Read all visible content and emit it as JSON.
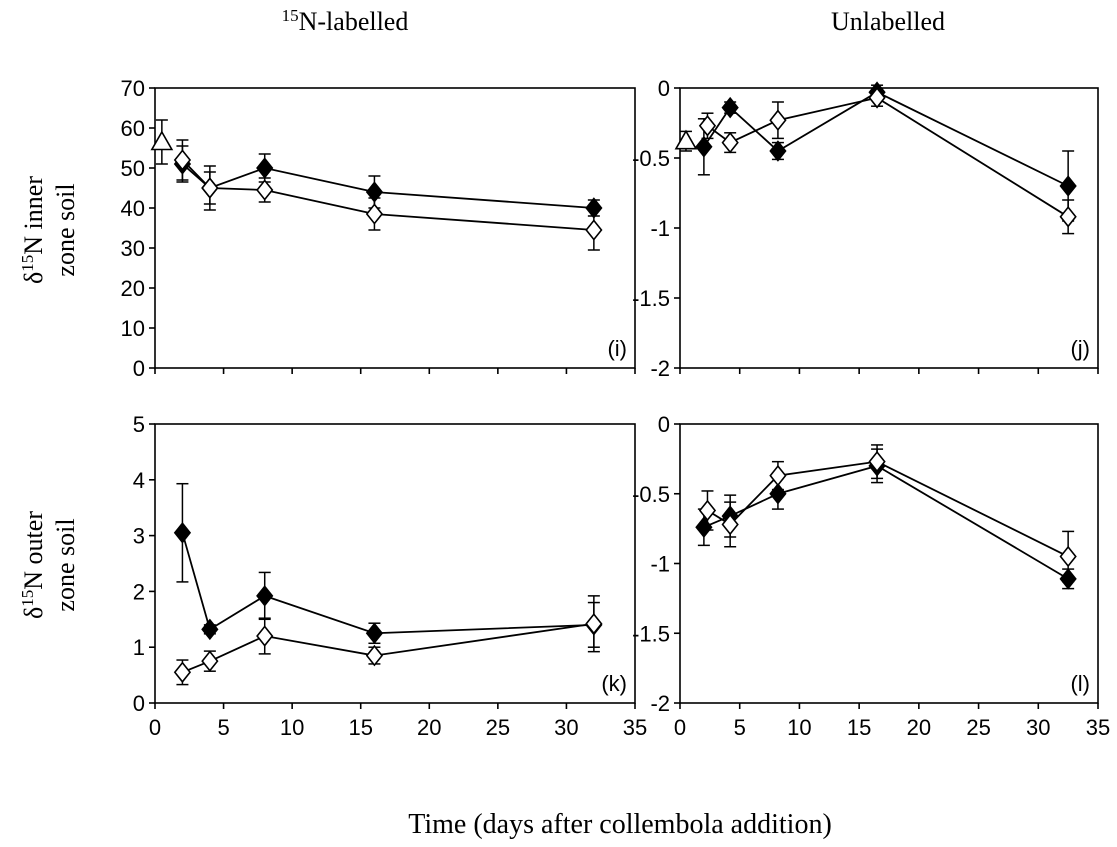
{
  "figure": {
    "col_left_title": {
      "pre": "15",
      "post": "N-labelled"
    },
    "col_right_title": "Unlabelled",
    "row_top_ylabel": {
      "delta": "δ",
      "sup": "15",
      "line1": "N inner",
      "line2": "zone soil"
    },
    "row_bottom_ylabel": {
      "delta": "δ",
      "sup": "15",
      "line1": "N outer",
      "line2": "zone soil"
    },
    "xlabel": "Time (days after collembola addition)"
  },
  "chart_data": [
    {
      "type": "line",
      "panel": "(i)",
      "xlim": [
        0,
        35
      ],
      "xticks": [
        0,
        5,
        10,
        15,
        20,
        25,
        30,
        35
      ],
      "ylim": [
        0,
        70
      ],
      "yticks": [
        0,
        10,
        20,
        30,
        40,
        50,
        60,
        70
      ],
      "series": [
        {
          "marker": "filled-diamond",
          "points": [
            {
              "x": 2,
              "y": 51,
              "err": 4.5
            },
            {
              "x": 4,
              "y": 45,
              "err": 4
            },
            {
              "x": 8,
              "y": 50,
              "err": 3.5
            },
            {
              "x": 16,
              "y": 44,
              "err": 4
            },
            {
              "x": 32,
              "y": 40,
              "err": 2
            }
          ]
        },
        {
          "marker": "open-diamond",
          "points": [
            {
              "x": 2,
              "y": 52,
              "err": 5
            },
            {
              "x": 4,
              "y": 45,
              "err": 5.5
            },
            {
              "x": 8,
              "y": 44.5,
              "err": 3
            },
            {
              "x": 16,
              "y": 38.5,
              "err": 4
            },
            {
              "x": 32,
              "y": 34.5,
              "err": 5
            }
          ]
        },
        {
          "marker": "open-triangle",
          "points": [
            {
              "x": 0.5,
              "y": 56.5,
              "err": 5.5
            }
          ]
        }
      ]
    },
    {
      "type": "line",
      "panel": "(j)",
      "xlim": [
        0,
        35
      ],
      "xticks": [
        0,
        5,
        10,
        15,
        20,
        25,
        30,
        35
      ],
      "ylim": [
        -2,
        0
      ],
      "yticks": [
        -2,
        -1.5,
        -1,
        -0.5,
        0
      ],
      "series": [
        {
          "marker": "filled-diamond",
          "points": [
            {
              "x": 2,
              "y": -0.42,
              "err": 0.2
            },
            {
              "x": 4.2,
              "y": -0.14,
              "err": 0.04
            },
            {
              "x": 8.2,
              "y": -0.45,
              "err": 0.06
            },
            {
              "x": 16.5,
              "y": -0.03,
              "err": 0.05
            },
            {
              "x": 32.5,
              "y": -0.7,
              "err": 0.25
            }
          ]
        },
        {
          "marker": "open-diamond",
          "points": [
            {
              "x": 2.3,
              "y": -0.27,
              "err": 0.09
            },
            {
              "x": 4.2,
              "y": -0.39,
              "err": 0.07
            },
            {
              "x": 8.2,
              "y": -0.23,
              "err": 0.13
            },
            {
              "x": 16.5,
              "y": -0.07,
              "err": 0.06
            },
            {
              "x": 32.5,
              "y": -0.92,
              "err": 0.12
            }
          ]
        },
        {
          "marker": "open-triangle",
          "points": [
            {
              "x": 0.5,
              "y": -0.38,
              "err": 0.07
            }
          ]
        }
      ]
    },
    {
      "type": "line",
      "panel": "(k)",
      "xlim": [
        0,
        35
      ],
      "xticks": [
        0,
        5,
        10,
        15,
        20,
        25,
        30,
        35
      ],
      "ylim": [
        0,
        5
      ],
      "yticks": [
        0,
        1,
        2,
        3,
        4,
        5
      ],
      "series": [
        {
          "marker": "filled-diamond",
          "points": [
            {
              "x": 2,
              "y": 3.05,
              "err": 0.88
            },
            {
              "x": 4,
              "y": 1.32,
              "err": 0.08
            },
            {
              "x": 8,
              "y": 1.92,
              "err": 0.42
            },
            {
              "x": 16,
              "y": 1.25,
              "err": 0.18
            },
            {
              "x": 32,
              "y": 1.4,
              "err": 0.4
            }
          ]
        },
        {
          "marker": "open-diamond",
          "points": [
            {
              "x": 2,
              "y": 0.55,
              "err": 0.22
            },
            {
              "x": 4,
              "y": 0.75,
              "err": 0.18
            },
            {
              "x": 8,
              "y": 1.2,
              "err": 0.32
            },
            {
              "x": 16,
              "y": 0.85,
              "err": 0.15
            },
            {
              "x": 32,
              "y": 1.42,
              "err": 0.5
            }
          ]
        }
      ]
    },
    {
      "type": "line",
      "panel": "(l)",
      "xlim": [
        0,
        35
      ],
      "xticks": [
        0,
        5,
        10,
        15,
        20,
        25,
        30,
        35
      ],
      "ylim": [
        -2,
        0
      ],
      "yticks": [
        -2,
        -1.5,
        -1,
        -0.5,
        0
      ],
      "series": [
        {
          "marker": "filled-diamond",
          "points": [
            {
              "x": 2,
              "y": -0.74,
              "err": 0.13
            },
            {
              "x": 4.2,
              "y": -0.66,
              "err": 0.15
            },
            {
              "x": 8.2,
              "y": -0.5,
              "err": 0.11
            },
            {
              "x": 16.5,
              "y": -0.3,
              "err": 0.12
            },
            {
              "x": 32.5,
              "y": -1.11,
              "err": 0.07
            }
          ]
        },
        {
          "marker": "open-diamond",
          "points": [
            {
              "x": 2.3,
              "y": -0.62,
              "err": 0.14
            },
            {
              "x": 4.2,
              "y": -0.72,
              "err": 0.16
            },
            {
              "x": 8.2,
              "y": -0.37,
              "err": 0.1
            },
            {
              "x": 16.5,
              "y": -0.27,
              "err": 0.12
            },
            {
              "x": 32.5,
              "y": -0.95,
              "err": 0.18
            }
          ]
        }
      ]
    }
  ]
}
